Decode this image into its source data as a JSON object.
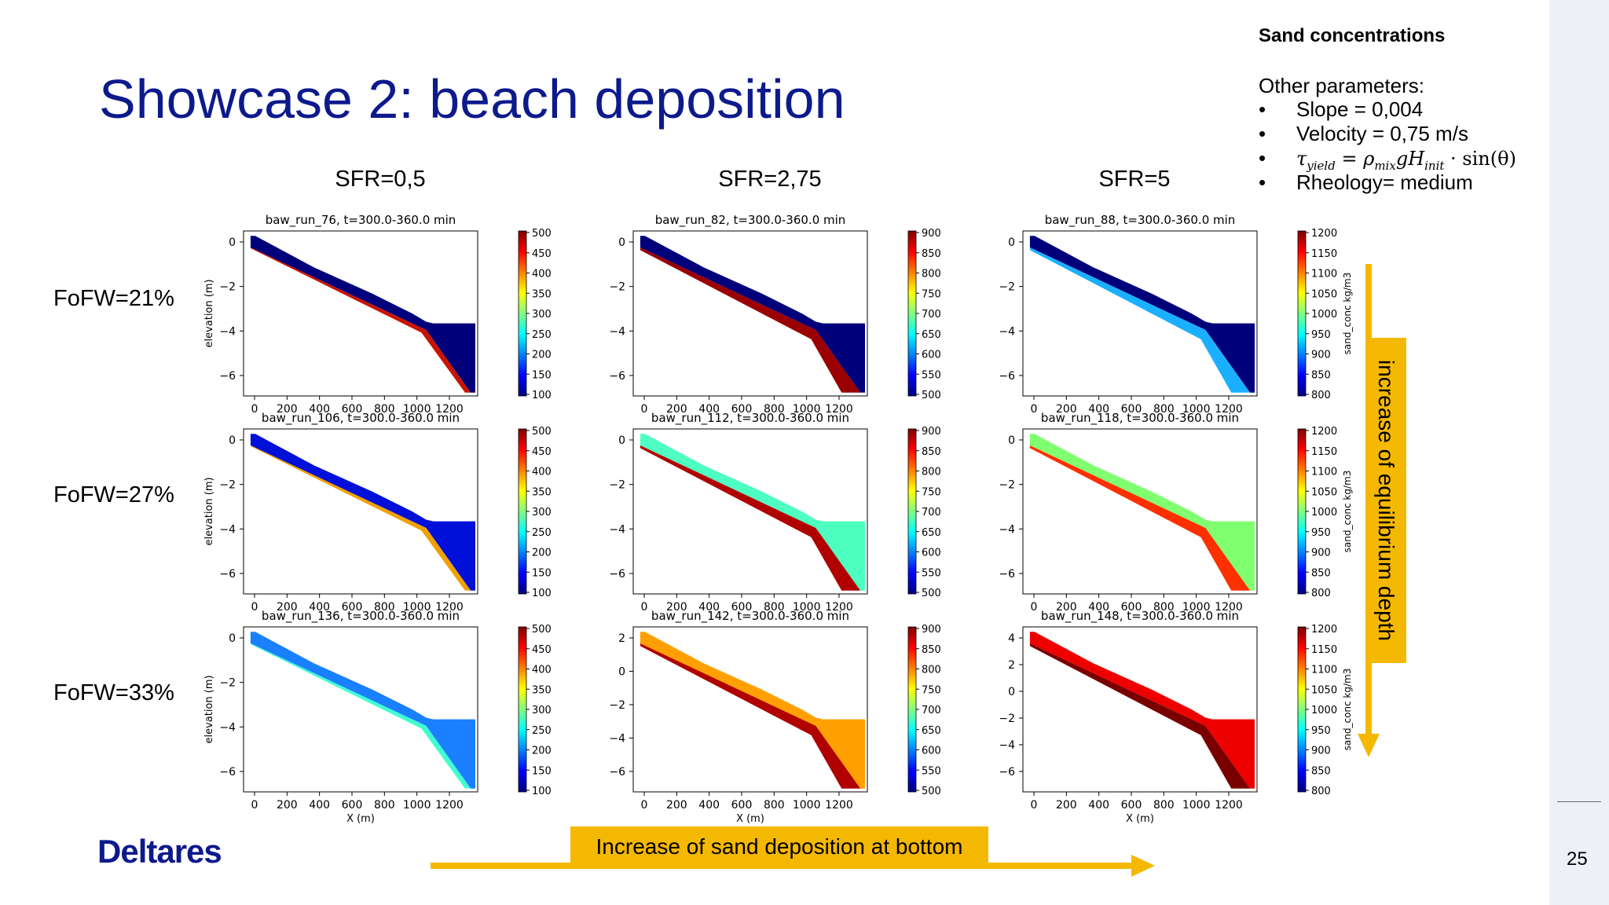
{
  "slide": {
    "title": "Showcase 2: beach deposition",
    "info_heading": "Sand concentrations",
    "info_subheading": "Other parameters:",
    "parameters": [
      {
        "text": "Slope = 0,004"
      },
      {
        "text": "Velocity = 0,75 m/s"
      },
      {
        "text": "Rheology= medium"
      }
    ],
    "formula": {
      "tau": "τ",
      "tau_sub": "yield",
      "eq": " = ",
      "rho": "ρ",
      "rho_sub": "mix",
      "g": "g",
      "h": "H",
      "h_sub": "init",
      "tail": " · sin(θ)"
    },
    "bullet": "•",
    "col_labels": [
      "SFR=0,5",
      "SFR=2,75",
      "SFR=5"
    ],
    "row_labels": [
      "FoFW=21%",
      "FoFW=27%",
      "FoFW=33%"
    ],
    "right_arrow_label": "increase of equilibrium depth",
    "bottom_arrow_label": "Increase of sand deposition at bottom",
    "logo": "Deltares",
    "page_number": "25",
    "accent_color": "#f5b800",
    "title_color": "#0d1a8c"
  },
  "plot_common": {
    "x_ticks": [
      "0",
      "200",
      "400",
      "600",
      "800",
      "1000",
      "1200"
    ],
    "y_axis_label": "elevation (m)",
    "x_axis_label": "X (m)",
    "colorbar_label": "sand_conc kg/m3"
  },
  "colorbars": [
    {
      "ticks": [
        "500",
        "450",
        "400",
        "350",
        "300",
        "250",
        "200",
        "150",
        "100"
      ]
    },
    {
      "ticks": [
        "900",
        "850",
        "800",
        "750",
        "700",
        "650",
        "600",
        "550",
        "500"
      ]
    },
    {
      "ticks": [
        "1200",
        "1150",
        "1100",
        "1050",
        "1000",
        "950",
        "900",
        "850",
        "800"
      ]
    }
  ],
  "panels": [
    {
      "title": "baw_run_76, t=300.0-360.0 min",
      "y_ticks": [
        "0",
        "−2",
        "−4",
        "−6"
      ],
      "upper_color": "#00007a",
      "bottom_color": "#c81400",
      "thin_bottom": true
    },
    {
      "title": "baw_run_82, t=300.0-360.0 min",
      "y_ticks": [
        "0",
        "−2",
        "−4",
        "−6"
      ],
      "upper_color": "#00007a",
      "bottom_color": "#9a0000",
      "thin_bottom": false
    },
    {
      "title": "baw_run_88, t=300.0-360.0 min",
      "y_ticks": [
        "0",
        "−2",
        "−4",
        "−6"
      ],
      "upper_color": "#00007a",
      "bottom_color": "#1ab0ff",
      "thin_bottom": false
    },
    {
      "title": "baw_run_106, t=300.0-360.0 min",
      "y_ticks": [
        "0",
        "−2",
        "−4",
        "−6"
      ],
      "upper_color": "#0010d8",
      "bottom_color": "#f0a000",
      "thin_bottom": true
    },
    {
      "title": "baw_run_112, t=300.0-360.0 min",
      "y_ticks": [
        "0",
        "−2",
        "−4",
        "−6"
      ],
      "upper_color": "#4dffc0",
      "bottom_color": "#b00000",
      "thin_bottom": false
    },
    {
      "title": "baw_run_118, t=300.0-360.0 min",
      "y_ticks": [
        "0",
        "−2",
        "−4",
        "−6"
      ],
      "upper_color": "#80ff70",
      "bottom_color": "#ff3000",
      "thin_bottom": false
    },
    {
      "title": "baw_run_136, t=300.0-360.0 min",
      "y_ticks": [
        "0",
        "−2",
        "−4",
        "−6"
      ],
      "upper_color": "#1a80ff",
      "bottom_color": "#40ffd0",
      "thin_bottom": true
    },
    {
      "title": "baw_run_142, t=300.0-360.0 min",
      "y_ticks": [
        "2",
        "0",
        "−2",
        "−4",
        "−6"
      ],
      "upper_color": "#ffa000",
      "bottom_color": "#b00000",
      "thin_bottom": false
    },
    {
      "title": "baw_run_148, t=300.0-360.0 min",
      "y_ticks": [
        "4",
        "2",
        "0",
        "−2",
        "−4",
        "−6"
      ],
      "upper_color": "#ee0000",
      "bottom_color": "#7a0000",
      "thin_bottom": false
    }
  ]
}
